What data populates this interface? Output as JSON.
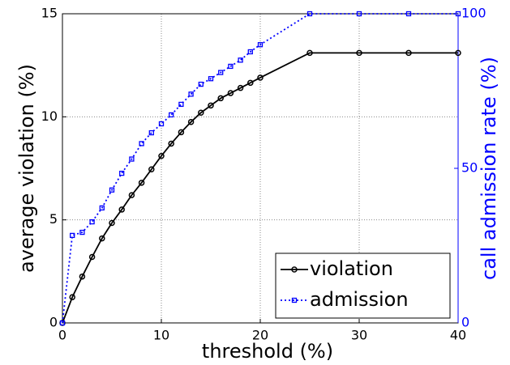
{
  "chart_data": {
    "type": "line",
    "xlabel": "threshold (%)",
    "ylabel": "average violation (%)",
    "y2label": "call admission rate (%)",
    "x": [
      0,
      1,
      2,
      3,
      4,
      5,
      6,
      7,
      8,
      9,
      10,
      11,
      12,
      13,
      14,
      15,
      16,
      17,
      18,
      19,
      20,
      25,
      30,
      35,
      40
    ],
    "series": [
      {
        "name": "violation",
        "color": "#000000",
        "marker": "circle",
        "linestyle": "solid",
        "values": [
          0,
          1.25,
          2.25,
          3.2,
          4.1,
          4.85,
          5.5,
          6.2,
          6.8,
          7.45,
          8.1,
          8.7,
          9.25,
          9.75,
          10.2,
          10.55,
          10.9,
          11.15,
          11.4,
          11.65,
          11.9,
          13.1,
          13.1,
          13.1,
          13.1
        ]
      },
      {
        "name": "admission",
        "color": "#0000ff",
        "marker": "square",
        "linestyle": "dotted",
        "axis": "y2",
        "values": [
          0,
          28.3,
          29.3,
          32.7,
          37.2,
          43,
          48.4,
          53,
          58,
          61.5,
          64.4,
          67.3,
          70.7,
          74,
          77.2,
          79,
          81,
          83,
          85,
          87.7,
          90,
          100,
          100,
          100,
          100
        ]
      }
    ],
    "xlim": [
      0,
      40
    ],
    "xticks": [
      0,
      10,
      20,
      30,
      40
    ],
    "ylim": [
      0,
      15
    ],
    "yticks": [
      0,
      5,
      10,
      15
    ],
    "y2lim": [
      0,
      100
    ],
    "y2ticks": [
      0,
      50,
      100
    ],
    "y2color": "#0000ff",
    "grid": true,
    "legend_loc": "lower right"
  }
}
